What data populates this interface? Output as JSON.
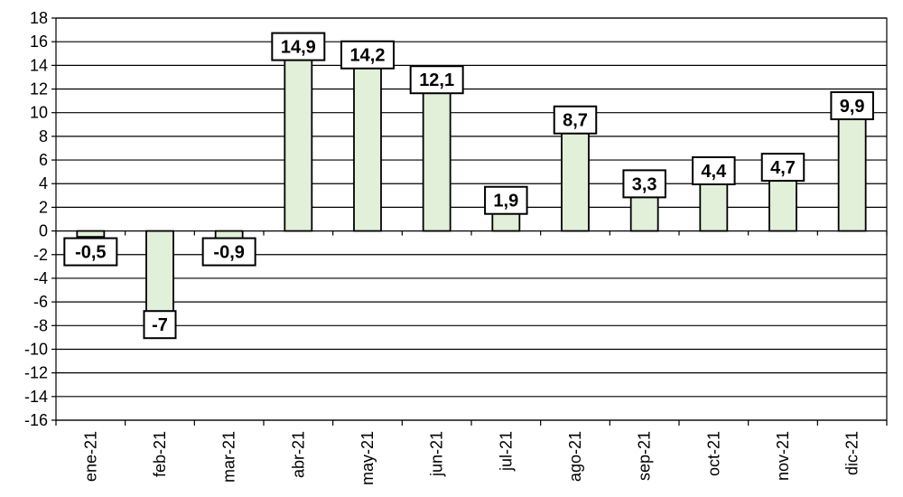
{
  "chart_data": {
    "type": "bar",
    "categories": [
      "ene-21",
      "feb-21",
      "mar-21",
      "abr-21",
      "may-21",
      "jun-21",
      "jul-21",
      "ago-21",
      "sep-21",
      "oct-21",
      "nov-21",
      "dic-21"
    ],
    "values": [
      -0.5,
      -7,
      -0.9,
      14.9,
      14.2,
      12.1,
      1.9,
      8.7,
      3.3,
      4.4,
      4.7,
      9.9
    ],
    "data_labels": [
      "-0,5",
      "-7",
      "-0,9",
      "14,9",
      "14,2",
      "12,1",
      "1,9",
      "8,7",
      "3,3",
      "4,4",
      "4,7",
      "9,9"
    ],
    "yticks": [
      18,
      16,
      14,
      12,
      10,
      8,
      6,
      4,
      2,
      0,
      -2,
      -4,
      -6,
      -8,
      -10,
      -12,
      -14,
      -16
    ],
    "ylim": [
      -16,
      18
    ],
    "grid": true,
    "bar_color": "#e2efd9",
    "bar_edge_color": "#000000"
  }
}
